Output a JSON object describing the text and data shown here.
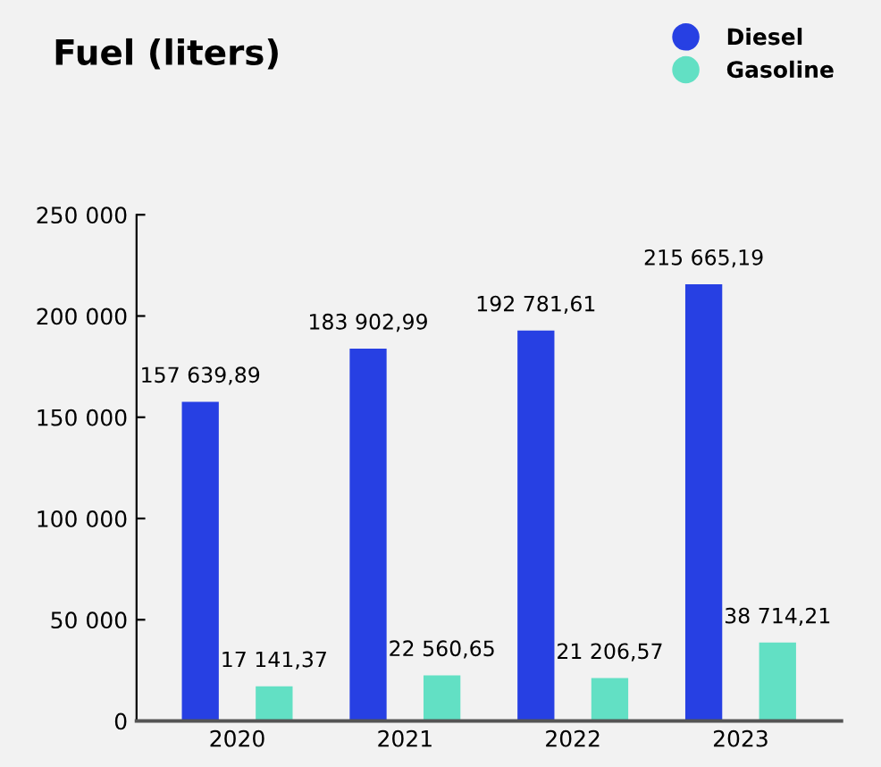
{
  "chart_data": {
    "type": "bar",
    "title": "Fuel (liters)",
    "categories": [
      "2020",
      "2021",
      "2022",
      "2023"
    ],
    "series": [
      {
        "name": "Diesel",
        "color": "#2740e3",
        "values": [
          157639.89,
          183902.99,
          192781.61,
          215665.19
        ],
        "value_labels": [
          "157 639,89",
          "183 902,99",
          "192 781,61",
          "215 665,19"
        ]
      },
      {
        "name": "Gasoline",
        "color": "#62e0c4",
        "values": [
          17141.37,
          22560.65,
          21206.57,
          38714.21
        ],
        "value_labels": [
          "17 141,37",
          "22 560,65",
          "21 206,57",
          "38 714,21"
        ]
      }
    ],
    "ylim": [
      0,
      250000
    ],
    "yticks": [
      {
        "value": 0,
        "label": "0"
      },
      {
        "value": 50000,
        "label": "50 000"
      },
      {
        "value": 100000,
        "label": "100 000"
      },
      {
        "value": 150000,
        "label": "150 000"
      },
      {
        "value": 200000,
        "label": "200 000"
      },
      {
        "value": 250000,
        "label": "250 000"
      }
    ],
    "grid": false,
    "legend": "top right"
  }
}
